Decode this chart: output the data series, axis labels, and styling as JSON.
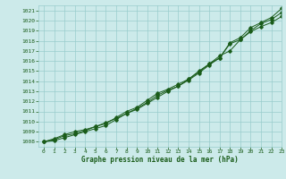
{
  "xlabel": "Graphe pression niveau de la mer (hPa)",
  "xlim": [
    -0.5,
    23
  ],
  "ylim": [
    1007.5,
    1021.5
  ],
  "yticks": [
    1008,
    1009,
    1010,
    1011,
    1012,
    1013,
    1014,
    1015,
    1016,
    1017,
    1018,
    1019,
    1020,
    1021
  ],
  "xticks": [
    0,
    1,
    2,
    3,
    4,
    5,
    6,
    7,
    8,
    9,
    10,
    11,
    12,
    13,
    14,
    15,
    16,
    17,
    18,
    19,
    20,
    21,
    22,
    23
  ],
  "background_color": "#cceaea",
  "line_color": "#1a5c1a",
  "grid_color": "#99cccc",
  "line1": [
    1008.0,
    1008.2,
    1008.6,
    1008.8,
    1009.1,
    1009.5,
    1009.9,
    1010.3,
    1010.8,
    1011.2,
    1011.8,
    1012.4,
    1013.0,
    1013.5,
    1014.2,
    1015.0,
    1015.7,
    1016.3,
    1017.8,
    1018.3,
    1019.3,
    1019.8,
    1020.3,
    1021.2
  ],
  "line2": [
    1008.0,
    1008.3,
    1008.7,
    1009.0,
    1009.2,
    1009.5,
    1009.8,
    1010.4,
    1011.0,
    1011.4,
    1012.1,
    1012.8,
    1013.2,
    1013.7,
    1014.2,
    1014.9,
    1015.7,
    1016.5,
    1017.0,
    1018.1,
    1019.0,
    1019.7,
    1020.1,
    1020.8
  ],
  "line3": [
    1008.0,
    1008.1,
    1008.4,
    1008.7,
    1009.0,
    1009.3,
    1009.6,
    1010.2,
    1010.8,
    1011.3,
    1011.9,
    1012.6,
    1013.1,
    1013.5,
    1014.1,
    1014.8,
    1015.6,
    1016.3,
    1017.7,
    1018.1,
    1018.9,
    1019.4,
    1019.8,
    1020.4
  ]
}
